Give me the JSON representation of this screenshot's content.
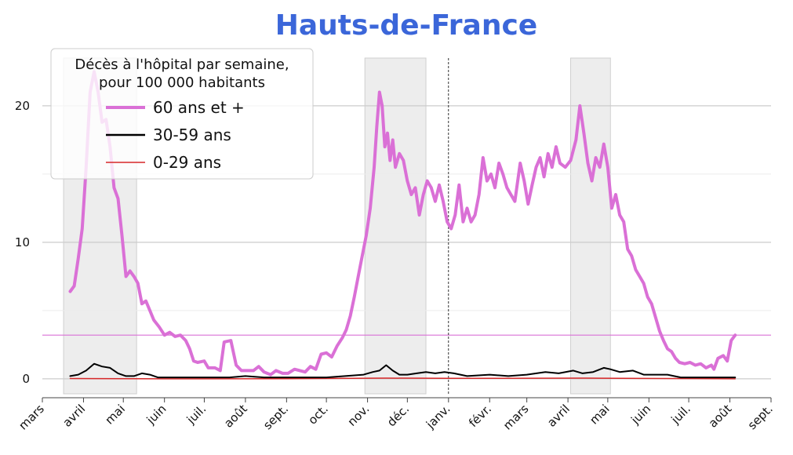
{
  "chart_data": {
    "type": "line",
    "title": "Hauts-de-France",
    "title_color": "#3b66d9",
    "legend_title_lines": [
      "Décès à l'hôpital par semaine,",
      "pour 100 000 habitants"
    ],
    "legend_placement": "top-left",
    "xlabel": "",
    "ylabel": "",
    "ylim": [
      -1.1,
      23.5
    ],
    "yticks": [
      0,
      10,
      20
    ],
    "grid": true,
    "x_axis": {
      "start": "2020-03-01",
      "end": "2021-09-01"
    },
    "x_ticks": [
      {
        "date": "2020-03-01",
        "label": "mars"
      },
      {
        "date": "2020-04-01",
        "label": "avril"
      },
      {
        "date": "2020-05-01",
        "label": "mai"
      },
      {
        "date": "2020-06-01",
        "label": "juin"
      },
      {
        "date": "2020-07-01",
        "label": "juil."
      },
      {
        "date": "2020-08-01",
        "label": "août"
      },
      {
        "date": "2020-09-01",
        "label": "sept."
      },
      {
        "date": "2020-10-01",
        "label": "oct."
      },
      {
        "date": "2020-11-01",
        "label": "nov."
      },
      {
        "date": "2020-12-01",
        "label": "déc."
      },
      {
        "date": "2021-01-01",
        "label": "janv."
      },
      {
        "date": "2021-02-01",
        "label": "févr."
      },
      {
        "date": "2021-03-01",
        "label": "mars"
      },
      {
        "date": "2021-04-01",
        "label": "avril"
      },
      {
        "date": "2021-05-01",
        "label": "mai"
      },
      {
        "date": "2021-06-01",
        "label": "juin"
      },
      {
        "date": "2021-07-01",
        "label": "juil."
      },
      {
        "date": "2021-08-01",
        "label": "août"
      },
      {
        "date": "2021-09-01",
        "label": "sept."
      }
    ],
    "shaded_periods": [
      {
        "start": "2020-03-17",
        "end": "2020-05-11"
      },
      {
        "start": "2020-10-30",
        "end": "2020-12-15"
      },
      {
        "start": "2021-04-03",
        "end": "2021-05-03"
      }
    ],
    "vertical_line_date": "2021-01-01",
    "reference_line": {
      "y": 3.2,
      "color": "#da70d6"
    },
    "series": [
      {
        "name": "60 ans et +",
        "color": "#da70d6",
        "width": 4,
        "points": [
          [
            "2020-03-22",
            6.4
          ],
          [
            "2020-03-25",
            6.8
          ],
          [
            "2020-03-28",
            8.8
          ],
          [
            "2020-03-31",
            11.0
          ],
          [
            "2020-04-03",
            15.5
          ],
          [
            "2020-04-06",
            21.0
          ],
          [
            "2020-04-09",
            22.5
          ],
          [
            "2020-04-12",
            21.0
          ],
          [
            "2020-04-15",
            18.8
          ],
          [
            "2020-04-18",
            19.0
          ],
          [
            "2020-04-21",
            17.0
          ],
          [
            "2020-04-24",
            14.0
          ],
          [
            "2020-04-27",
            13.2
          ],
          [
            "2020-04-30",
            10.5
          ],
          [
            "2020-05-03",
            7.5
          ],
          [
            "2020-05-06",
            7.9
          ],
          [
            "2020-05-09",
            7.5
          ],
          [
            "2020-05-12",
            7.0
          ],
          [
            "2020-05-15",
            5.5
          ],
          [
            "2020-05-18",
            5.7
          ],
          [
            "2020-05-21",
            5.0
          ],
          [
            "2020-05-24",
            4.3
          ],
          [
            "2020-05-28",
            3.8
          ],
          [
            "2020-06-01",
            3.2
          ],
          [
            "2020-06-05",
            3.4
          ],
          [
            "2020-06-09",
            3.1
          ],
          [
            "2020-06-13",
            3.2
          ],
          [
            "2020-06-17",
            2.8
          ],
          [
            "2020-06-20",
            2.2
          ],
          [
            "2020-06-23",
            1.3
          ],
          [
            "2020-06-26",
            1.2
          ],
          [
            "2020-07-01",
            1.3
          ],
          [
            "2020-07-04",
            0.8
          ],
          [
            "2020-07-09",
            0.8
          ],
          [
            "2020-07-13",
            0.6
          ],
          [
            "2020-07-16",
            2.7
          ],
          [
            "2020-07-21",
            2.8
          ],
          [
            "2020-07-25",
            1.0
          ],
          [
            "2020-07-29",
            0.6
          ],
          [
            "2020-08-03",
            0.6
          ],
          [
            "2020-08-07",
            0.6
          ],
          [
            "2020-08-11",
            0.9
          ],
          [
            "2020-08-15",
            0.5
          ],
          [
            "2020-08-20",
            0.3
          ],
          [
            "2020-08-24",
            0.6
          ],
          [
            "2020-08-29",
            0.4
          ],
          [
            "2020-09-02",
            0.4
          ],
          [
            "2020-09-07",
            0.7
          ],
          [
            "2020-09-11",
            0.6
          ],
          [
            "2020-09-15",
            0.5
          ],
          [
            "2020-09-19",
            0.9
          ],
          [
            "2020-09-23",
            0.7
          ],
          [
            "2020-09-27",
            1.8
          ],
          [
            "2020-10-01",
            1.9
          ],
          [
            "2020-10-05",
            1.6
          ],
          [
            "2020-10-09",
            2.4
          ],
          [
            "2020-10-13",
            3.0
          ],
          [
            "2020-10-16",
            3.6
          ],
          [
            "2020-10-19",
            4.6
          ],
          [
            "2020-10-22",
            6.0
          ],
          [
            "2020-10-25",
            7.5
          ],
          [
            "2020-10-28",
            9.0
          ],
          [
            "2020-10-31",
            10.5
          ],
          [
            "2020-11-03",
            12.5
          ],
          [
            "2020-11-06",
            15.5
          ],
          [
            "2020-11-08",
            18.5
          ],
          [
            "2020-11-10",
            21.0
          ],
          [
            "2020-11-12",
            20.0
          ],
          [
            "2020-11-14",
            17.0
          ],
          [
            "2020-11-16",
            18.0
          ],
          [
            "2020-11-18",
            16.0
          ],
          [
            "2020-11-20",
            17.5
          ],
          [
            "2020-11-22",
            15.5
          ],
          [
            "2020-11-25",
            16.5
          ],
          [
            "2020-11-28",
            16.0
          ],
          [
            "2020-12-01",
            14.5
          ],
          [
            "2020-12-04",
            13.5
          ],
          [
            "2020-12-07",
            14.0
          ],
          [
            "2020-12-10",
            12.0
          ],
          [
            "2020-12-13",
            13.5
          ],
          [
            "2020-12-16",
            14.5
          ],
          [
            "2020-12-19",
            14.0
          ],
          [
            "2020-12-22",
            13.0
          ],
          [
            "2020-12-25",
            14.2
          ],
          [
            "2020-12-28",
            13.0
          ],
          [
            "2020-12-31",
            11.5
          ],
          [
            "2021-01-03",
            11.0
          ],
          [
            "2021-01-06",
            12.0
          ],
          [
            "2021-01-09",
            14.2
          ],
          [
            "2021-01-12",
            11.5
          ],
          [
            "2021-01-15",
            12.5
          ],
          [
            "2021-01-18",
            11.5
          ],
          [
            "2021-01-21",
            12.0
          ],
          [
            "2021-01-24",
            13.5
          ],
          [
            "2021-01-27",
            16.2
          ],
          [
            "2021-01-30",
            14.5
          ],
          [
            "2021-02-02",
            15.0
          ],
          [
            "2021-02-05",
            14.0
          ],
          [
            "2021-02-08",
            15.8
          ],
          [
            "2021-02-11",
            15.0
          ],
          [
            "2021-02-14",
            14.0
          ],
          [
            "2021-02-17",
            13.5
          ],
          [
            "2021-02-20",
            13.0
          ],
          [
            "2021-02-24",
            15.8
          ],
          [
            "2021-02-27",
            14.5
          ],
          [
            "2021-03-02",
            12.8
          ],
          [
            "2021-03-05",
            14.2
          ],
          [
            "2021-03-08",
            15.5
          ],
          [
            "2021-03-11",
            16.2
          ],
          [
            "2021-03-14",
            14.8
          ],
          [
            "2021-03-17",
            16.5
          ],
          [
            "2021-03-20",
            15.5
          ],
          [
            "2021-03-23",
            17.0
          ],
          [
            "2021-03-26",
            15.8
          ],
          [
            "2021-03-30",
            15.5
          ],
          [
            "2021-04-03",
            16.0
          ],
          [
            "2021-04-07",
            17.5
          ],
          [
            "2021-04-10",
            20.0
          ],
          [
            "2021-04-13",
            18.0
          ],
          [
            "2021-04-16",
            15.8
          ],
          [
            "2021-04-19",
            14.5
          ],
          [
            "2021-04-22",
            16.2
          ],
          [
            "2021-04-25",
            15.5
          ],
          [
            "2021-04-28",
            17.2
          ],
          [
            "2021-05-01",
            15.5
          ],
          [
            "2021-05-04",
            12.5
          ],
          [
            "2021-05-07",
            13.5
          ],
          [
            "2021-05-10",
            12.0
          ],
          [
            "2021-05-13",
            11.5
          ],
          [
            "2021-05-16",
            9.5
          ],
          [
            "2021-05-19",
            9.0
          ],
          [
            "2021-05-22",
            8.0
          ],
          [
            "2021-05-25",
            7.5
          ],
          [
            "2021-05-28",
            7.0
          ],
          [
            "2021-05-31",
            6.0
          ],
          [
            "2021-06-03",
            5.5
          ],
          [
            "2021-06-06",
            4.5
          ],
          [
            "2021-06-09",
            3.5
          ],
          [
            "2021-06-12",
            2.8
          ],
          [
            "2021-06-15",
            2.2
          ],
          [
            "2021-06-18",
            2.0
          ],
          [
            "2021-06-21",
            1.5
          ],
          [
            "2021-06-24",
            1.2
          ],
          [
            "2021-06-28",
            1.1
          ],
          [
            "2021-07-02",
            1.2
          ],
          [
            "2021-07-06",
            1.0
          ],
          [
            "2021-07-10",
            1.1
          ],
          [
            "2021-07-14",
            0.8
          ],
          [
            "2021-07-18",
            1.0
          ],
          [
            "2021-07-20",
            0.7
          ],
          [
            "2021-07-23",
            1.5
          ],
          [
            "2021-07-27",
            1.7
          ],
          [
            "2021-07-30",
            1.3
          ],
          [
            "2021-08-02",
            2.8
          ],
          [
            "2021-08-05",
            3.2
          ]
        ]
      },
      {
        "name": "30-59 ans",
        "color": "#000000",
        "width": 2,
        "points": [
          [
            "2020-03-22",
            0.2
          ],
          [
            "2020-03-28",
            0.3
          ],
          [
            "2020-04-03",
            0.6
          ],
          [
            "2020-04-09",
            1.1
          ],
          [
            "2020-04-15",
            0.9
          ],
          [
            "2020-04-21",
            0.8
          ],
          [
            "2020-04-27",
            0.4
          ],
          [
            "2020-05-03",
            0.2
          ],
          [
            "2020-05-09",
            0.2
          ],
          [
            "2020-05-15",
            0.4
          ],
          [
            "2020-05-21",
            0.3
          ],
          [
            "2020-05-27",
            0.1
          ],
          [
            "2020-06-05",
            0.1
          ],
          [
            "2020-07-01",
            0.1
          ],
          [
            "2020-07-20",
            0.1
          ],
          [
            "2020-08-01",
            0.2
          ],
          [
            "2020-08-15",
            0.1
          ],
          [
            "2020-09-01",
            0.1
          ],
          [
            "2020-10-01",
            0.1
          ],
          [
            "2020-10-15",
            0.2
          ],
          [
            "2020-10-29",
            0.3
          ],
          [
            "2020-11-05",
            0.5
          ],
          [
            "2020-11-10",
            0.6
          ],
          [
            "2020-11-15",
            1.0
          ],
          [
            "2020-11-20",
            0.6
          ],
          [
            "2020-11-25",
            0.3
          ],
          [
            "2020-12-01",
            0.3
          ],
          [
            "2020-12-08",
            0.4
          ],
          [
            "2020-12-15",
            0.5
          ],
          [
            "2020-12-22",
            0.4
          ],
          [
            "2020-12-29",
            0.5
          ],
          [
            "2021-01-05",
            0.4
          ],
          [
            "2021-01-15",
            0.2
          ],
          [
            "2021-02-01",
            0.3
          ],
          [
            "2021-02-15",
            0.2
          ],
          [
            "2021-03-01",
            0.3
          ],
          [
            "2021-03-15",
            0.5
          ],
          [
            "2021-03-25",
            0.4
          ],
          [
            "2021-04-05",
            0.6
          ],
          [
            "2021-04-12",
            0.4
          ],
          [
            "2021-04-20",
            0.5
          ],
          [
            "2021-04-28",
            0.8
          ],
          [
            "2021-05-03",
            0.7
          ],
          [
            "2021-05-10",
            0.5
          ],
          [
            "2021-05-20",
            0.6
          ],
          [
            "2021-05-28",
            0.3
          ],
          [
            "2021-06-05",
            0.3
          ],
          [
            "2021-06-15",
            0.3
          ],
          [
            "2021-06-25",
            0.1
          ],
          [
            "2021-07-10",
            0.1
          ],
          [
            "2021-08-05",
            0.1
          ]
        ]
      },
      {
        "name": "0-29 ans",
        "color": "#d62728",
        "width": 1.5,
        "points": [
          [
            "2020-03-22",
            0.02
          ],
          [
            "2020-06-01",
            0.0
          ],
          [
            "2020-09-01",
            0.01
          ],
          [
            "2020-11-15",
            0.05
          ],
          [
            "2021-01-01",
            0.03
          ],
          [
            "2021-04-15",
            0.05
          ],
          [
            "2021-06-15",
            0.02
          ],
          [
            "2021-08-05",
            0.0
          ]
        ]
      }
    ]
  }
}
